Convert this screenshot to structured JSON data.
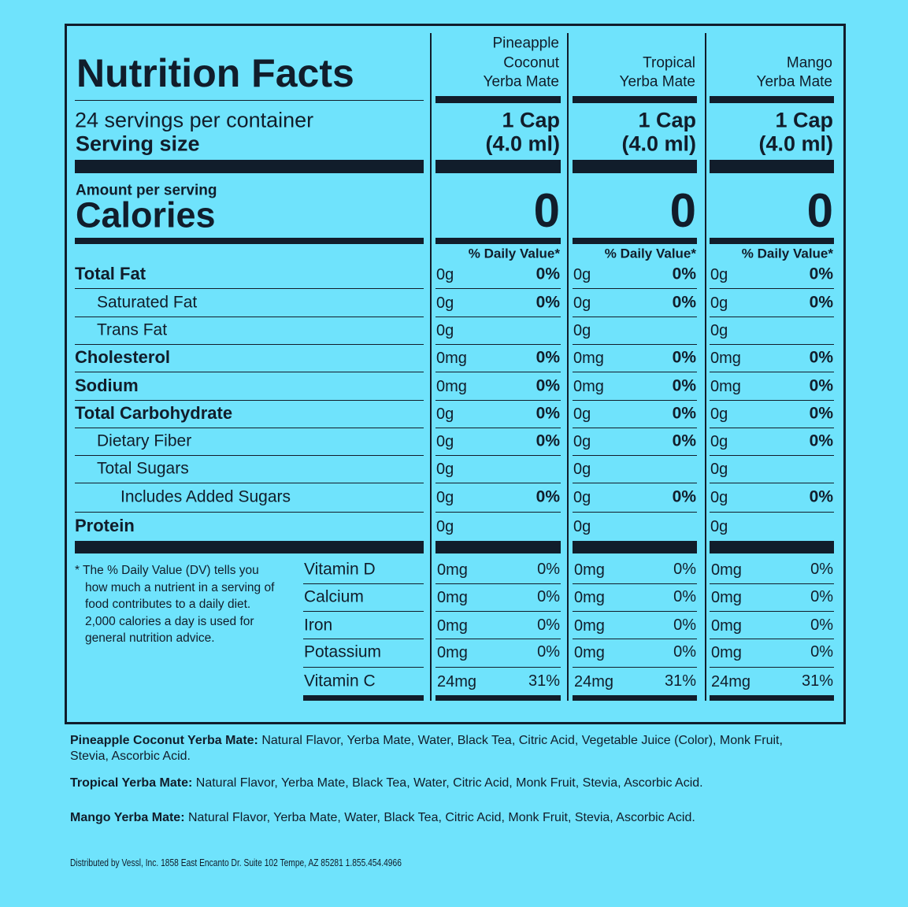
{
  "title": "Nutrition Facts",
  "servings_per_container": "24 servings per container",
  "serving_size_label": "Serving size",
  "amount_per_serving": "Amount per serving",
  "calories_label": "Calories",
  "daily_value_header": "% Daily Value*",
  "products": [
    {
      "name": [
        "Pineapple",
        "Coconut",
        "Yerba Mate"
      ],
      "serving_size": [
        "1 Cap",
        "(4.0 ml)"
      ],
      "calories": "0"
    },
    {
      "name": [
        "Tropical",
        "Yerba Mate"
      ],
      "serving_size": [
        "1 Cap",
        "(4.0 ml)"
      ],
      "calories": "0"
    },
    {
      "name": [
        "Mango",
        "Yerba Mate"
      ],
      "serving_size": [
        "1 Cap",
        "(4.0 ml)"
      ],
      "calories": "0"
    }
  ],
  "nutrients": [
    {
      "name": "Total Fat",
      "values": [
        {
          "amount": "0g",
          "daily_value": "0%"
        },
        {
          "amount": "0g",
          "daily_value": "0%"
        },
        {
          "amount": "0g",
          "daily_value": "0%"
        }
      ]
    },
    {
      "name": "Saturated Fat",
      "values": [
        {
          "amount": "0g",
          "daily_value": "0%"
        },
        {
          "amount": "0g",
          "daily_value": "0%"
        },
        {
          "amount": "0g",
          "daily_value": "0%"
        }
      ]
    },
    {
      "name": "Trans Fat",
      "values": [
        {
          "amount": "0g"
        },
        {
          "amount": "0g"
        },
        {
          "amount": "0g"
        }
      ]
    },
    {
      "name": "Cholesterol",
      "values": [
        {
          "amount": "0mg",
          "daily_value": "0%"
        },
        {
          "amount": "0mg",
          "daily_value": "0%"
        },
        {
          "amount": "0mg",
          "daily_value": "0%"
        }
      ]
    },
    {
      "name": "Sodium",
      "values": [
        {
          "amount": "0mg",
          "daily_value": "0%"
        },
        {
          "amount": "0mg",
          "daily_value": "0%"
        },
        {
          "amount": "0mg",
          "daily_value": "0%"
        }
      ]
    },
    {
      "name": "Total Carbohydrate",
      "values": [
        {
          "amount": "0g",
          "daily_value": "0%"
        },
        {
          "amount": "0g",
          "daily_value": "0%"
        },
        {
          "amount": "0g",
          "daily_value": "0%"
        }
      ]
    },
    {
      "name": "Dietary Fiber",
      "values": [
        {
          "amount": "0g",
          "daily_value": "0%"
        },
        {
          "amount": "0g",
          "daily_value": "0%"
        },
        {
          "amount": "0g",
          "daily_value": "0%"
        }
      ]
    },
    {
      "name": "Total Sugars",
      "values": [
        {
          "amount": "0g"
        },
        {
          "amount": "0g"
        },
        {
          "amount": "0g"
        }
      ]
    },
    {
      "name": "Includes Added Sugars",
      "values": [
        {
          "amount": "0g",
          "daily_value": "0%"
        },
        {
          "amount": "0g",
          "daily_value": "0%"
        },
        {
          "amount": "0g",
          "daily_value": "0%"
        }
      ]
    },
    {
      "name": "Protein",
      "values": [
        {
          "amount": "0g"
        },
        {
          "amount": "0g"
        },
        {
          "amount": "0g"
        }
      ]
    }
  ],
  "vitamins": [
    {
      "name": "Vitamin D",
      "values": [
        {
          "amount": "0mg",
          "daily_value": "0%"
        },
        {
          "amount": "0mg",
          "daily_value": "0%"
        },
        {
          "amount": "0mg",
          "daily_value": "0%"
        }
      ]
    },
    {
      "name": "Calcium",
      "values": [
        {
          "amount": "0mg",
          "daily_value": "0%"
        },
        {
          "amount": "0mg",
          "daily_value": "0%"
        },
        {
          "amount": "0mg",
          "daily_value": "0%"
        }
      ]
    },
    {
      "name": "Iron",
      "values": [
        {
          "amount": "0mg",
          "daily_value": "0%"
        },
        {
          "amount": "0mg",
          "daily_value": "0%"
        },
        {
          "amount": "0mg",
          "daily_value": "0%"
        }
      ]
    },
    {
      "name": "Potassium",
      "values": [
        {
          "amount": "0mg",
          "daily_value": "0%"
        },
        {
          "amount": "0mg",
          "daily_value": "0%"
        },
        {
          "amount": "0mg",
          "daily_value": "0%"
        }
      ]
    },
    {
      "name": "Vitamin C",
      "values": [
        {
          "amount": "24mg",
          "daily_value": "31%"
        },
        {
          "amount": "24mg",
          "daily_value": "31%"
        },
        {
          "amount": "24mg",
          "daily_value": "31%"
        }
      ]
    }
  ],
  "footnote": "* The % Daily Value (DV) tells you how much a nutrient in a serving of food contributes to a daily diet. 2,000 calories a day is used for general nutrition advice.",
  "ingredients": [
    {
      "label": "Pineapple Coconut Yerba Mate:",
      "text": "Natural Flavor, Yerba Mate, Water, Black Tea, Citric Acid, Vegetable Juice (Color), Monk Fruit, Stevia, Ascorbic Acid."
    },
    {
      "label": "Tropical Yerba Mate:",
      "text": "Natural Flavor, Yerba Mate, Black Tea, Water, Citric Acid, Monk Fruit, Stevia, Ascorbic Acid."
    },
    {
      "label": "Mango Yerba Mate:",
      "text": "Natural Flavor, Yerba Mate, Water, Black Tea, Citric Acid, Monk Fruit, Stevia,  Ascorbic Acid."
    }
  ],
  "distributor": "Distributed by Vessl, Inc. 1858 East Encanto Dr. Suite 102 Tempe, AZ 85281 1.855.454.4966"
}
